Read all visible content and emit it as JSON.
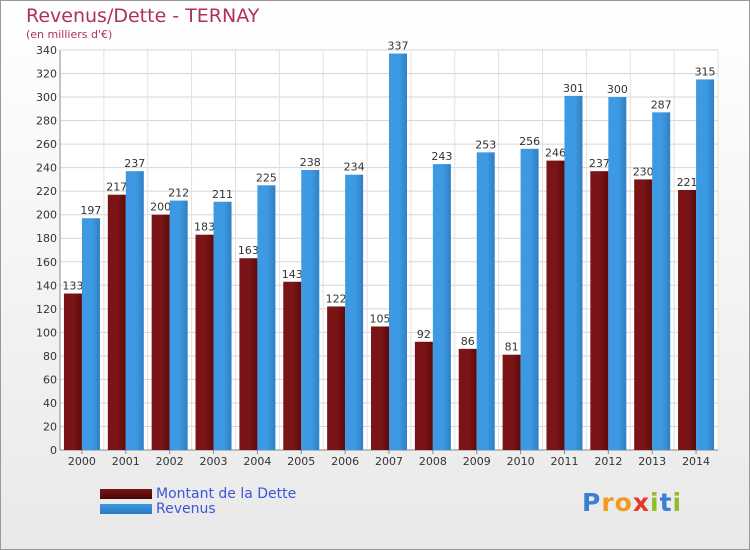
{
  "chart_data": {
    "type": "bar",
    "title": "Revenus/Dette - TERNAY",
    "subtitle": "(en milliers d'€)",
    "categories": [
      "2000",
      "2001",
      "2002",
      "2003",
      "2004",
      "2005",
      "2006",
      "2007",
      "2008",
      "2009",
      "2010",
      "2011",
      "2012",
      "2013",
      "2014"
    ],
    "series": [
      {
        "name": "Montant de la Dette",
        "color": "#7a1416",
        "values": [
          133,
          217,
          200,
          183,
          163,
          143,
          122,
          105,
          92,
          86,
          81,
          246,
          237,
          230,
          221
        ]
      },
      {
        "name": "Revenus",
        "color": "#3d9ae2",
        "values": [
          197,
          237,
          212,
          211,
          225,
          238,
          234,
          337,
          243,
          253,
          256,
          301,
          300,
          287,
          315
        ]
      }
    ],
    "ylim": [
      0,
      340
    ],
    "yticks": [
      0,
      20,
      40,
      60,
      80,
      100,
      120,
      140,
      160,
      180,
      200,
      220,
      240,
      260,
      280,
      300,
      320,
      340
    ],
    "grid": true,
    "legend": "bottom-left"
  },
  "brand": {
    "letters": [
      {
        "char": "P",
        "color": "#3a7fd0"
      },
      {
        "char": "r",
        "color": "#f29a1e"
      },
      {
        "char": "o",
        "color": "#f29a1e"
      },
      {
        "char": "x",
        "color": "#e8372b"
      },
      {
        "char": "i",
        "color": "#8cbf2a"
      },
      {
        "char": "t",
        "color": "#3a7fd0"
      },
      {
        "char": "i",
        "color": "#8cbf2a"
      }
    ]
  }
}
